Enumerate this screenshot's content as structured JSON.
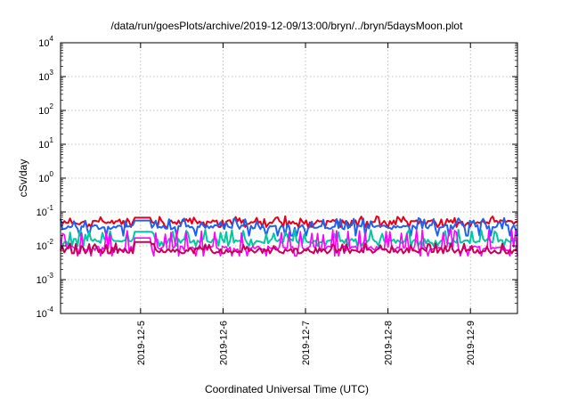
{
  "chart_data": {
    "type": "line",
    "title": "/data/run/goesPlots/archive/2019-12-09/13:00/bryn/../bryn/5daysMoon.plot",
    "xlabel": "Coordinated Universal Time (UTC)",
    "ylabel": "cSv/day",
    "yscale": "log",
    "ylim_exp": [
      -4,
      4
    ],
    "y_tick_base": "10",
    "y_tick_exponents": [
      "-4",
      "-3",
      "-2",
      "-1",
      "0",
      "1",
      "2",
      "3",
      "4"
    ],
    "x_tick_labels": [
      "2019-12-5",
      "2019-12-6",
      "2019-12-7",
      "2019-12-8",
      "2019-12-9"
    ],
    "x_tick_days": [
      1,
      2,
      3,
      4,
      5
    ],
    "xlim_days": [
      0.03,
      5.57
    ],
    "grid": true,
    "series": [
      {
        "color": "#e8001a",
        "base": 0.05,
        "spike": 0.075,
        "dip": 0.036,
        "box": 0.068
      },
      {
        "color": "#1e62f0",
        "base": 0.036,
        "spike": 0.068,
        "dip": 0.02,
        "box": 0.056
      },
      {
        "color": "#00c8a0",
        "base": 0.014,
        "spike": 0.03,
        "dip": 0.01,
        "box": 0.026
      },
      {
        "color": "#ff00ff",
        "base": 0.0085,
        "spike": 0.03,
        "dip": 0.005,
        "box": 0.017
      },
      {
        "color": "#c8005a",
        "base": 0.0072,
        "spike": 0.012,
        "dip": 0.006,
        "box": 0.013
      }
    ]
  }
}
